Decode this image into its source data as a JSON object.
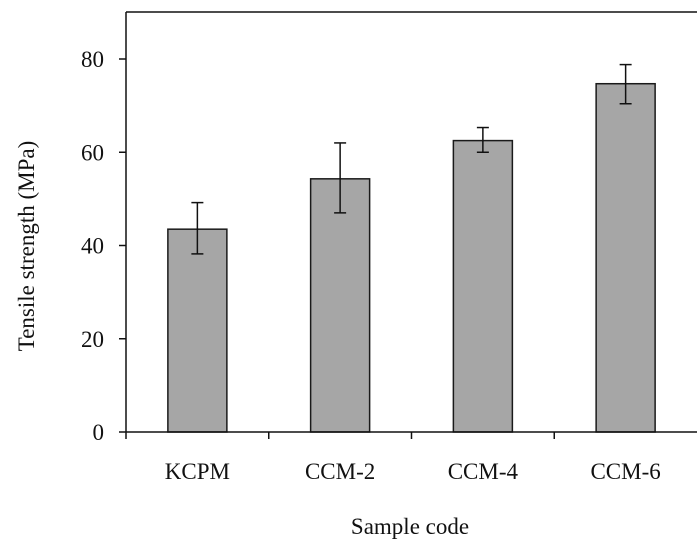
{
  "chart_data": {
    "type": "bar",
    "title": "",
    "xlabel": "Sample code",
    "ylabel": "Tensile strength (MPa)",
    "categories": [
      "KCPM",
      "CCM-2",
      "CCM-4",
      "CCM-6"
    ],
    "values": [
      43.5,
      54.3,
      62.5,
      74.7
    ],
    "error_low": [
      38.2,
      47.0,
      60.0,
      70.4
    ],
    "error_high": [
      49.2,
      62.0,
      65.3,
      78.8
    ],
    "ylim": [
      0,
      90
    ],
    "yticks": [
      0,
      20,
      40,
      60,
      80
    ],
    "grid": false,
    "legend": "none",
    "colors": {
      "bar_fill": "#a6a6a6",
      "bar_stroke": "#1a1a1a",
      "axis": "#111111"
    }
  }
}
